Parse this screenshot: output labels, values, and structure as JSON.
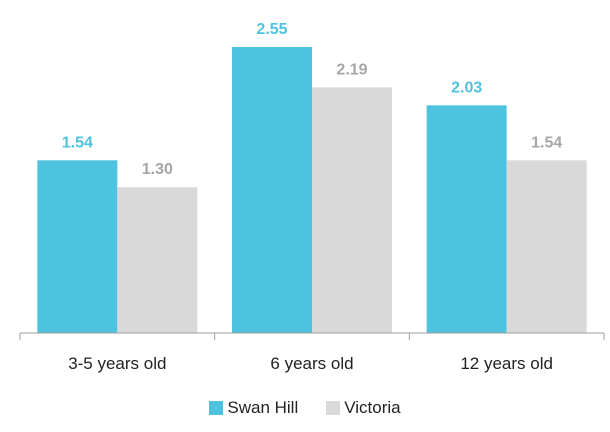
{
  "chart_data": {
    "type": "bar",
    "categories": [
      "3-5 years old",
      "6 years old",
      "12 years old"
    ],
    "series": [
      {
        "name": "Swan Hill",
        "values": [
          1.54,
          2.55,
          2.03
        ],
        "color": "#4ec3e0",
        "label_color": "#4ec3e0"
      },
      {
        "name": "Victoria",
        "values": [
          1.3,
          2.19,
          1.54
        ],
        "color": "#d9d9d9",
        "label_color": "#a6a6a6"
      }
    ],
    "value_labels": [
      [
        "1.54",
        "2.55",
        "2.03"
      ],
      [
        "1.30",
        "2.19",
        "1.54"
      ]
    ],
    "ylim": [
      0,
      2.55
    ],
    "grid": false,
    "legend_position": "bottom",
    "title": "",
    "xlabel": "",
    "ylabel": ""
  }
}
